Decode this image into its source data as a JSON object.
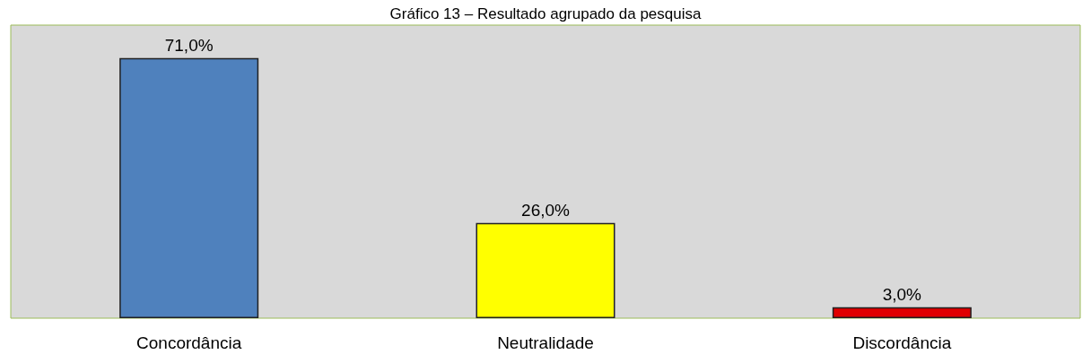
{
  "chart_data": {
    "type": "bar",
    "title": "Gráfico 13 – Resultado agrupado da pesquisa",
    "categories": [
      "Concordância",
      "Neutralidade",
      "Discordância"
    ],
    "values": [
      71,
      26,
      3
    ],
    "colors": [
      "#4f81bd",
      "#ffff00",
      "#e00000"
    ],
    "value_labels": [
      "71,0%",
      "26,0%",
      "3,0%"
    ],
    "grid": false
  }
}
